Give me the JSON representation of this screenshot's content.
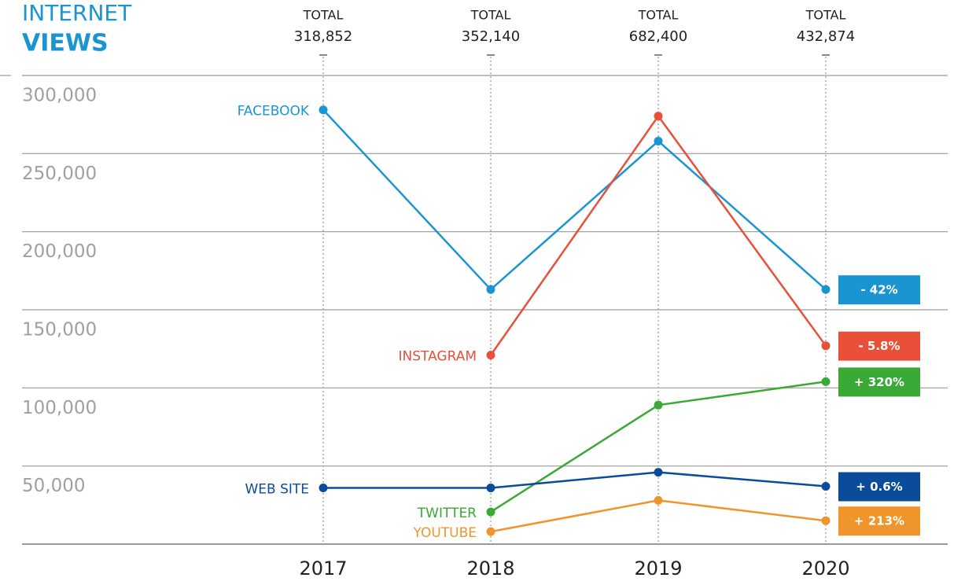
{
  "chart_data": {
    "type": "line",
    "title": "INTERNET",
    "subtitle": "VIEWS",
    "categories": [
      "2017",
      "2018",
      "2019",
      "2020"
    ],
    "totals": {
      "label": "TOTAL",
      "values": [
        318852,
        352140,
        682400,
        432874
      ],
      "value_labels": [
        "318,852",
        "352,140",
        "682,400",
        "432,874"
      ]
    },
    "series": [
      {
        "name": "FACEBOOK",
        "color": "#1b95d2",
        "values": [
          278000,
          163000,
          258000,
          163000
        ],
        "change": "- 42%"
      },
      {
        "name": "INSTAGRAM",
        "color": "#e8503a",
        "values": [
          null,
          121000,
          274000,
          127000
        ],
        "change": "- 5.8%"
      },
      {
        "name": "TWITTER",
        "color": "#3aa935",
        "values": [
          null,
          20600,
          89000,
          104000
        ],
        "change": "+ 320%"
      },
      {
        "name": "WEB SITE",
        "color": "#0a4c9a",
        "values": [
          36000,
          36000,
          46000,
          37000
        ],
        "change": "+ 0.6%"
      },
      {
        "name": "YOUTUBE",
        "color": "#f0952b",
        "values": [
          null,
          8000,
          28000,
          15000
        ],
        "change": "+ 213%"
      }
    ],
    "ylim": [
      0,
      300000
    ],
    "yticks": [
      {
        "value": 50000,
        "label": "50,000"
      },
      {
        "value": 100000,
        "label": "100,000"
      },
      {
        "value": 150000,
        "label": "150,000"
      },
      {
        "value": 200000,
        "label": "200,000"
      },
      {
        "value": 250000,
        "label": "250,000"
      },
      {
        "value": 300000,
        "label": "300,000"
      }
    ],
    "grid": true
  }
}
